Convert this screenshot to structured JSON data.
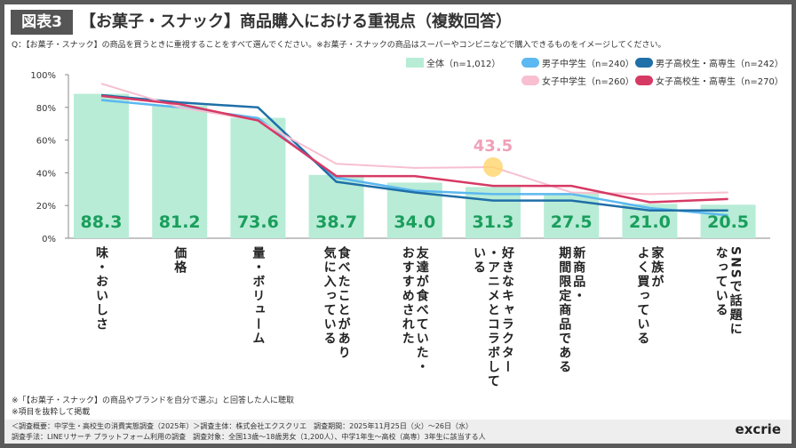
{
  "badge": "図表3",
  "title": "【お菓子・スナック】商品購入における重視点（複数回答）",
  "question": "Q：【お菓子・スナック】の商品を買うときに重視することをすべて選んでください。※お菓子・スナックの商品はスーパーやコンビニなどで購入できるものをイメージしてください。",
  "notes": [
    "※「【お菓子・スナック】の商品やブランドを自分で選ぶ」と回答した人に聴取",
    "※項目を抜粋して掲載"
  ],
  "footer": {
    "line1": "＜調査概要：中学生・高校生の消費実態調査（2025年）＞調査主体：株式会社エクスクリエ　調査期間：2025年11月25日（火）～26日（水）",
    "line2": "調査手法：LINEリサーチ プラットフォーム利用の調査　調査対象：全国13歳～18歳男女（1,200人）、中学1年生～高校（高専）3年生に該当する人",
    "logo": "excrie"
  },
  "chart_data": {
    "type": "bar",
    "ylim": [
      0,
      100
    ],
    "yticks": [
      "0%",
      "20%",
      "40%",
      "60%",
      "80%",
      "100%"
    ],
    "categories": [
      [
        "味・おいしさ"
      ],
      [
        "価格"
      ],
      [
        "量・ボリューム"
      ],
      [
        "食べたことがあり",
        "気に入っている"
      ],
      [
        "友達が食べていた・",
        "おすすめされた"
      ],
      [
        "好きなキャラクター",
        "・アニメとコラボして",
        "いる"
      ],
      [
        "新商品・",
        "期間限定商品である"
      ],
      [
        "家族が",
        "よく買っている"
      ],
      [
        "SNSで話題に",
        "なっている"
      ]
    ],
    "bar_series": {
      "name": "全体（n=1,012）",
      "color": "#b8ecd6",
      "label_color": "#1a9e5c",
      "values": [
        88.3,
        81.2,
        73.6,
        38.7,
        34.0,
        31.3,
        27.5,
        21.0,
        20.5
      ]
    },
    "line_series": [
      {
        "name": "男子中学生（n=240）",
        "color": "#5bb8f0",
        "values": [
          84.5,
          80,
          73.5,
          37,
          29,
          27,
          27,
          18.5,
          14
        ]
      },
      {
        "name": "男子高校生・高専生（n=242）",
        "color": "#1f6fa8",
        "values": [
          87.5,
          83,
          80,
          34.5,
          28,
          23,
          23,
          17,
          17
        ]
      },
      {
        "name": "女子中学生（n=260）",
        "color": "#f7bfd0",
        "values": [
          94.5,
          80,
          72,
          45.5,
          43,
          43.5,
          28,
          27,
          28
        ]
      },
      {
        "name": "女子高校生・高専生（n=270）",
        "color": "#d63a64",
        "values": [
          87,
          82,
          72,
          38,
          38,
          32,
          32,
          22,
          24
        ]
      }
    ],
    "annotation": {
      "text": "43.5",
      "category_index": 5,
      "series_index": 2,
      "color": "#f0a0b8",
      "marker_color": "#ffd56b"
    }
  }
}
